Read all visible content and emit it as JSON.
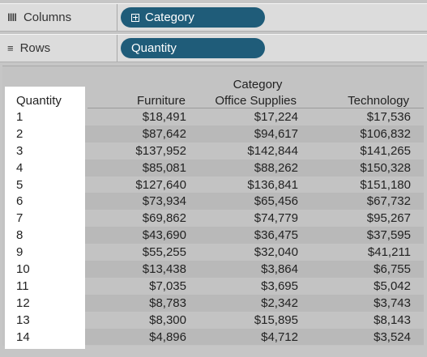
{
  "shelves": {
    "columns": {
      "label": "Columns",
      "icon": "columns-icon",
      "pill": "Category"
    },
    "rows": {
      "label": "Rows",
      "icon": "rows-icon",
      "pill": "Quantity"
    }
  },
  "table": {
    "column_group_header": "Category",
    "row_header": "Quantity",
    "columns": [
      "Furniture",
      "Office Supplies",
      "Technology"
    ],
    "rows": [
      {
        "qty": "1",
        "values": [
          "$18,491",
          "$17,224",
          "$17,536"
        ]
      },
      {
        "qty": "2",
        "values": [
          "$87,642",
          "$94,617",
          "$106,832"
        ]
      },
      {
        "qty": "3",
        "values": [
          "$137,952",
          "$142,844",
          "$141,265"
        ]
      },
      {
        "qty": "4",
        "values": [
          "$85,081",
          "$88,262",
          "$150,328"
        ]
      },
      {
        "qty": "5",
        "values": [
          "$127,640",
          "$136,841",
          "$151,180"
        ]
      },
      {
        "qty": "6",
        "values": [
          "$73,934",
          "$65,456",
          "$67,732"
        ]
      },
      {
        "qty": "7",
        "values": [
          "$69,862",
          "$74,779",
          "$95,267"
        ]
      },
      {
        "qty": "8",
        "values": [
          "$43,690",
          "$36,475",
          "$37,595"
        ]
      },
      {
        "qty": "9",
        "values": [
          "$55,255",
          "$32,040",
          "$41,211"
        ]
      },
      {
        "qty": "10",
        "values": [
          "$13,438",
          "$3,864",
          "$6,755"
        ]
      },
      {
        "qty": "11",
        "values": [
          "$7,035",
          "$3,695",
          "$5,042"
        ]
      },
      {
        "qty": "12",
        "values": [
          "$8,783",
          "$2,342",
          "$3,743"
        ]
      },
      {
        "qty": "13",
        "values": [
          "$8,300",
          "$15,895",
          "$8,143"
        ]
      },
      {
        "qty": "14",
        "values": [
          "$4,896",
          "$4,712",
          "$3,524"
        ]
      }
    ]
  },
  "colors": {
    "pill": "#1f5c79",
    "stripe": "#b9b9b9",
    "background": "#c3c3c3"
  }
}
